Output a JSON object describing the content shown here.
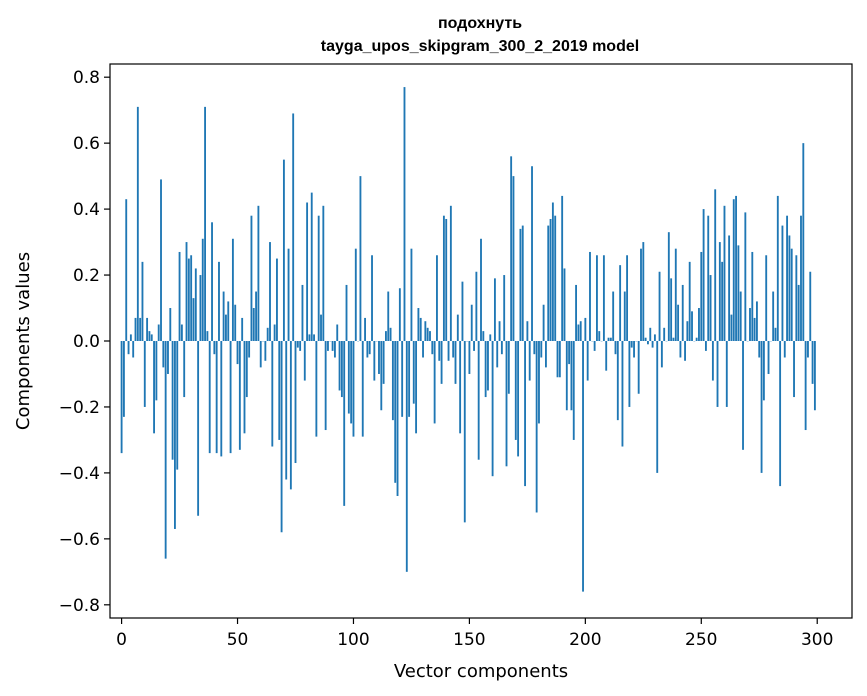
{
  "chart_data": {
    "type": "bar",
    "title": "подохнуть",
    "subtitle": "tayga_upos_skipgram_300_2_2019 model",
    "xlabel": "Vector components",
    "ylabel": "Components values",
    "xlim": [
      -5,
      315
    ],
    "ylim": [
      -0.84,
      0.84
    ],
    "x_ticks": [
      0,
      50,
      100,
      150,
      200,
      250,
      300
    ],
    "x_tick_labels": [
      "0",
      "50",
      "100",
      "150",
      "200",
      "250",
      "300"
    ],
    "y_ticks": [
      -0.8,
      -0.6,
      -0.4,
      -0.2,
      0.0,
      0.2,
      0.4,
      0.6,
      0.8
    ],
    "y_tick_labels": [
      "−0.8",
      "−0.6",
      "−0.4",
      "−0.2",
      "0.0",
      "0.2",
      "0.4",
      "0.6",
      "0.8"
    ],
    "grid": false,
    "bar_color": "#1f77b4",
    "series": [
      {
        "values": [
          -0.34,
          -0.23,
          0.43,
          -0.04,
          0.02,
          -0.05,
          0.07,
          0.71,
          0.07,
          0.24,
          -0.2,
          0.07,
          0.03,
          0.02,
          -0.28,
          -0.18,
          0.05,
          0.49,
          -0.08,
          -0.66,
          -0.1,
          0.1,
          -0.36,
          -0.57,
          -0.39,
          0.27,
          0.05,
          -0.17,
          0.3,
          0.25,
          0.26,
          0.13,
          0.22,
          -0.53,
          0.2,
          0.31,
          0.71,
          0.03,
          -0.34,
          0.36,
          -0.04,
          -0.34,
          0.24,
          -0.35,
          0.15,
          0.08,
          0.12,
          -0.34,
          0.31,
          0.11,
          -0.07,
          -0.33,
          0.07,
          -0.28,
          -0.17,
          -0.05,
          0.38,
          0.1,
          0.15,
          0.41,
          -0.08,
          0.0,
          -0.06,
          0.04,
          0.3,
          -0.32,
          0.05,
          0.25,
          -0.3,
          -0.58,
          0.55,
          -0.42,
          0.28,
          -0.45,
          0.69,
          -0.37,
          -0.02,
          -0.03,
          0.17,
          -0.12,
          0.42,
          0.02,
          0.45,
          0.02,
          -0.29,
          0.38,
          0.08,
          0.41,
          -0.27,
          -0.03,
          0.0,
          -0.03,
          -0.05,
          0.05,
          -0.15,
          -0.17,
          -0.5,
          0.17,
          -0.22,
          -0.25,
          -0.29,
          0.28,
          0.0,
          0.5,
          -0.29,
          0.07,
          -0.05,
          -0.04,
          0.26,
          -0.12,
          0.0,
          -0.1,
          -0.21,
          -0.13,
          0.03,
          0.15,
          0.04,
          -0.24,
          -0.43,
          -0.47,
          0.16,
          -0.23,
          0.77,
          -0.7,
          -0.23,
          0.28,
          -0.19,
          -0.28,
          0.1,
          0.07,
          -0.05,
          0.06,
          0.04,
          0.03,
          -0.04,
          -0.25,
          0.26,
          -0.06,
          -0.13,
          0.38,
          0.37,
          -0.06,
          0.41,
          -0.05,
          -0.13,
          0.08,
          -0.28,
          0.18,
          -0.55,
          0.0,
          -0.1,
          0.11,
          -0.03,
          0.21,
          -0.36,
          0.31,
          0.03,
          -0.17,
          -0.15,
          0.02,
          -0.41,
          0.19,
          -0.08,
          0.06,
          -0.04,
          0.2,
          -0.38,
          -0.16,
          0.56,
          0.5,
          -0.3,
          -0.35,
          0.34,
          0.35,
          -0.44,
          0.06,
          -0.12,
          0.53,
          -0.04,
          -0.52,
          -0.25,
          -0.05,
          0.11,
          -0.08,
          0.35,
          0.37,
          0.42,
          0.38,
          -0.11,
          -0.11,
          0.44,
          0.22,
          -0.21,
          -0.07,
          -0.21,
          -0.3,
          0.17,
          0.05,
          0.06,
          -0.76,
          0.07,
          -0.12,
          0.27,
          0.0,
          -0.03,
          0.26,
          0.03,
          0.0,
          0.26,
          -0.09,
          0.01,
          0.01,
          0.15,
          -0.04,
          -0.24,
          0.23,
          -0.32,
          0.15,
          0.26,
          -0.2,
          -0.02,
          -0.05,
          0.0,
          -0.16,
          0.28,
          0.3,
          0.01,
          -0.01,
          0.04,
          -0.02,
          0.02,
          -0.4,
          0.21,
          -0.08,
          0.04,
          0.0,
          0.33,
          0.19,
          0.01,
          0.28,
          0.11,
          -0.05,
          0.17,
          -0.06,
          0.06,
          0.24,
          0.09,
          0.0,
          0.01,
          0.1,
          0.27,
          0.4,
          -0.03,
          0.38,
          0.2,
          -0.12,
          0.46,
          -0.2,
          0.3,
          0.24,
          0.41,
          -0.2,
          0.32,
          0.08,
          0.43,
          0.44,
          0.29,
          0.15,
          -0.33,
          0.39,
          0.0,
          0.1,
          0.27,
          0.07,
          0.12,
          -0.05,
          -0.4,
          -0.18,
          0.26,
          -0.1,
          0.0,
          0.15,
          0.04,
          0.44,
          -0.44,
          0.35,
          -0.05,
          0.38,
          0.32,
          0.28,
          -0.17,
          0.26,
          0.17,
          0.38,
          0.6,
          -0.27,
          -0.05,
          0.21,
          -0.13,
          -0.21
        ]
      }
    ]
  }
}
